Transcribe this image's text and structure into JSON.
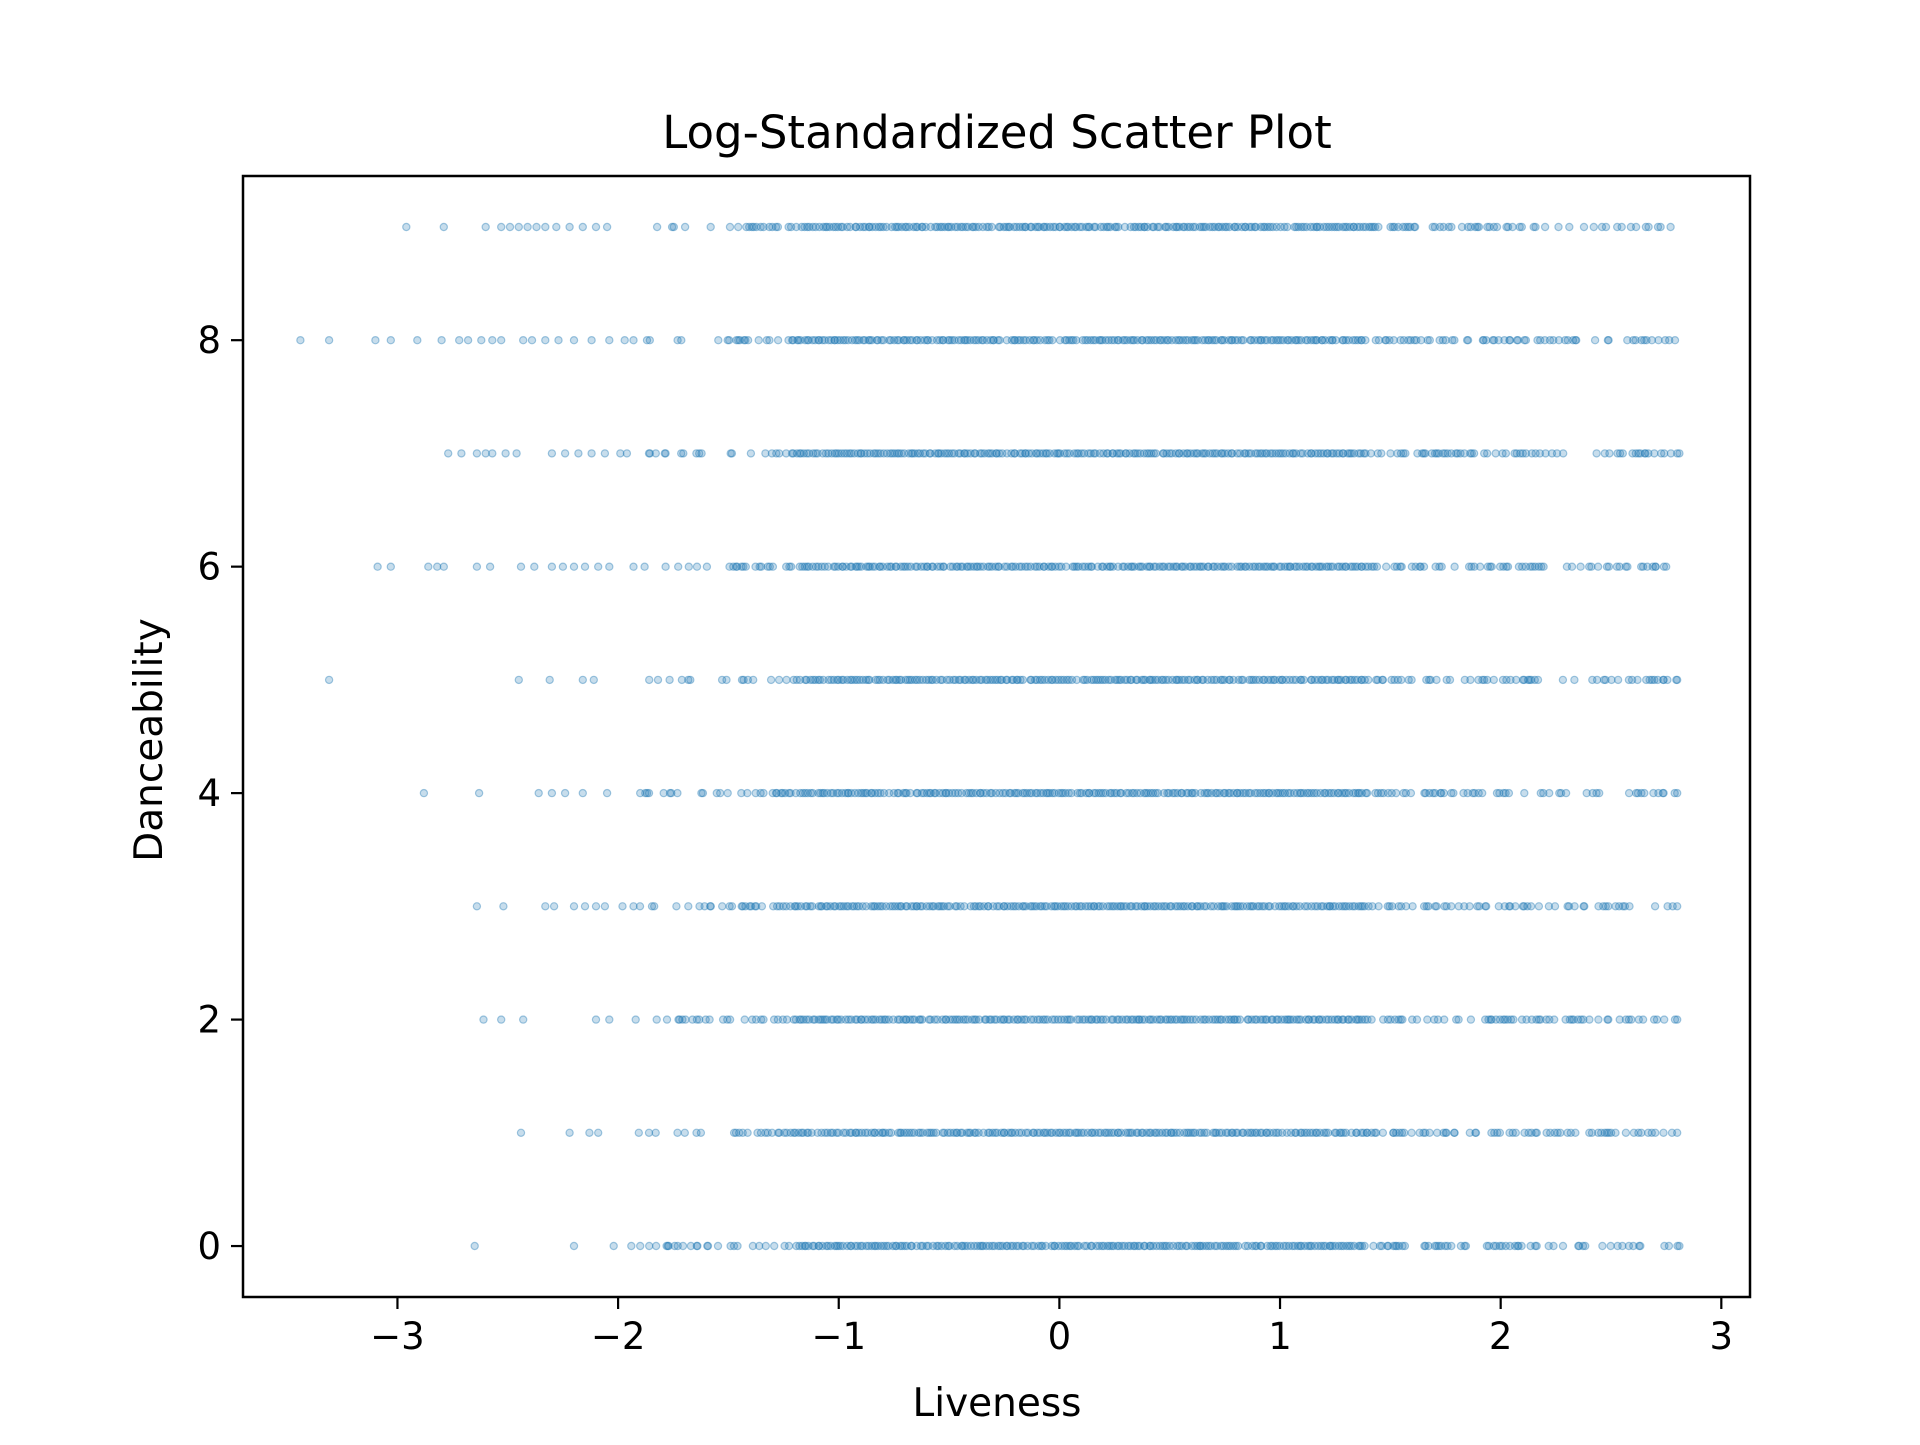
{
  "chart_data": {
    "type": "scatter",
    "title": "Log-Standardized Scatter Plot",
    "xlabel": "Liveness",
    "ylabel": "Danceability",
    "xlim": [
      -3.7,
      3.13
    ],
    "ylim": [
      -0.45,
      9.45
    ],
    "x_ticks": [
      {
        "value": -3,
        "label": "−3"
      },
      {
        "value": -2,
        "label": "−2"
      },
      {
        "value": -1,
        "label": "−1"
      },
      {
        "value": 0,
        "label": "0"
      },
      {
        "value": 1,
        "label": "1"
      },
      {
        "value": 2,
        "label": "2"
      },
      {
        "value": 3,
        "label": "3"
      }
    ],
    "y_ticks": [
      {
        "value": 0,
        "label": "0"
      },
      {
        "value": 2,
        "label": "2"
      },
      {
        "value": 4,
        "label": "4"
      },
      {
        "value": 6,
        "label": "6"
      },
      {
        "value": 8,
        "label": "8"
      }
    ],
    "grid": false,
    "legend": "none",
    "marker_color": "#1f77b4",
    "marker_alpha": 0.25,
    "series": [
      {
        "y_levels": [
          0,
          1,
          2,
          3,
          4,
          5,
          6,
          7,
          8,
          9
        ],
        "rows": [
          {
            "y": 9,
            "x_min": -2.96,
            "x_max": 2.77,
            "sparse_x": [
              -2.96,
              -2.79,
              -2.6,
              -2.53,
              -2.49,
              -2.45,
              -2.41,
              -2.37,
              -2.33,
              -2.28,
              -2.22,
              -2.16,
              -2.1,
              -2.05
            ]
          },
          {
            "y": 8,
            "x_min": -3.44,
            "x_max": 2.79,
            "sparse_x": [
              -3.44,
              -3.31,
              -3.1,
              -3.03,
              -2.91,
              -2.8,
              -2.72,
              -2.68,
              -2.62,
              -2.57,
              -2.53,
              -2.43,
              -2.39,
              -2.33,
              -2.27,
              -2.2,
              -2.12,
              -2.04,
              -1.97,
              -1.93
            ]
          },
          {
            "y": 7,
            "x_min": -2.77,
            "x_max": 2.81,
            "sparse_x": [
              -2.77,
              -2.71,
              -2.64,
              -2.6,
              -2.57,
              -2.51,
              -2.46,
              -2.3,
              -2.24,
              -2.18,
              -2.12,
              -2.06,
              -1.99,
              -1.96
            ]
          },
          {
            "y": 6,
            "x_min": -3.09,
            "x_max": 2.75,
            "sparse_x": [
              -3.09,
              -3.03,
              -2.86,
              -2.82,
              -2.79,
              -2.64,
              -2.58,
              -2.44,
              -2.38,
              -2.3,
              -2.25,
              -2.2,
              -2.15,
              -2.09,
              -2.04,
              -1.93,
              -1.88
            ]
          },
          {
            "y": 5,
            "x_min": -3.31,
            "x_max": 2.8,
            "sparse_x": [
              -3.31,
              -2.45,
              -2.31,
              -2.16,
              -2.11
            ]
          },
          {
            "y": 4,
            "x_min": -2.88,
            "x_max": 2.8,
            "sparse_x": [
              -2.88,
              -2.63,
              -2.36,
              -2.3,
              -2.24,
              -2.16,
              -2.05,
              -1.9,
              -1.86
            ]
          },
          {
            "y": 3,
            "x_min": -2.64,
            "x_max": 2.8,
            "sparse_x": [
              -2.64,
              -2.52,
              -2.33,
              -2.29,
              -2.2,
              -2.15,
              -2.1,
              -2.06,
              -1.98,
              -1.93
            ]
          },
          {
            "y": 2,
            "x_min": -2.61,
            "x_max": 2.8,
            "sparse_x": [
              -2.61,
              -2.53,
              -2.43,
              -2.1,
              -2.04,
              -1.92
            ]
          },
          {
            "y": 1,
            "x_min": -2.44,
            "x_max": 2.8,
            "sparse_x": [
              -2.44,
              -2.22,
              -2.13,
              -2.09,
              -1.86
            ]
          },
          {
            "y": 0,
            "x_min": -2.65,
            "x_max": 2.81,
            "sparse_x": [
              -2.65,
              -2.2,
              -2.02,
              -1.94,
              -1.9,
              -1.78,
              -1.73,
              -1.67
            ]
          }
        ]
      }
    ]
  }
}
